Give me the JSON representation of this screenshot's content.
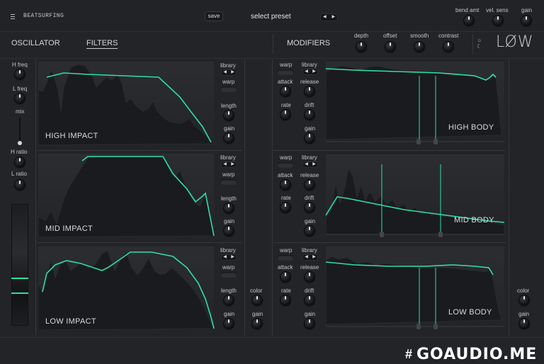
{
  "topbar": {
    "menu_icon": "menu-icon",
    "brand": "BEATSURFING",
    "save_label": "save",
    "preset_label": "select preset",
    "arrows": "◀ ▶",
    "controls": [
      {
        "label": "bend amt"
      },
      {
        "label": "vel. sens"
      },
      {
        "label": "gain"
      }
    ]
  },
  "tabs": {
    "oscillator": "OSCILLATOR",
    "filters": "FILTERS",
    "modifiers": "MODIFIERS"
  },
  "modifiers": [
    {
      "label": "depth"
    },
    {
      "label": "offset"
    },
    {
      "label": "smooth"
    },
    {
      "label": "contrast"
    }
  ],
  "logo": {
    "text": "LØW"
  },
  "left_strip": {
    "h_freq": "H freq",
    "l_freq": "L freq",
    "mix": "mix",
    "h_ratio": "H ratio",
    "l_ratio": "L ratio"
  },
  "impact_panels": [
    {
      "title": "HIGH IMPACT",
      "library": "library",
      "warp": "warp",
      "length": "length",
      "gain": "gain"
    },
    {
      "title": "MID IMPACT",
      "library": "library",
      "warp": "warp",
      "length": "length",
      "gain": "gain"
    },
    {
      "title": "LOW IMPACT",
      "library": "library",
      "warp": "warp",
      "length": "length",
      "gain": "gain"
    }
  ],
  "body_panels": [
    {
      "title": "HIGH BODY",
      "warp": "warp",
      "library": "library",
      "attack": "attack",
      "release": "release",
      "rate": "rate",
      "drift": "drift",
      "gain": "gain"
    },
    {
      "title": "MID BODY",
      "warp": "warp",
      "library": "library",
      "attack": "attack",
      "release": "release",
      "rate": "rate",
      "drift": "drift",
      "gain": "gain"
    },
    {
      "title": "LOW BODY",
      "warp": "warp",
      "library": "library",
      "attack": "attack",
      "release": "release",
      "rate": "rate",
      "drift": "drift",
      "gain": "gain"
    }
  ],
  "mid_column": {
    "color": "color",
    "gain": "gain"
  },
  "right_column": {
    "color": "color",
    "gain": "gain"
  },
  "watermark": "GOAUDIO.ME",
  "colors": {
    "accent": "#2fe0a0",
    "background": "#232428",
    "panel": "#1f2023"
  }
}
